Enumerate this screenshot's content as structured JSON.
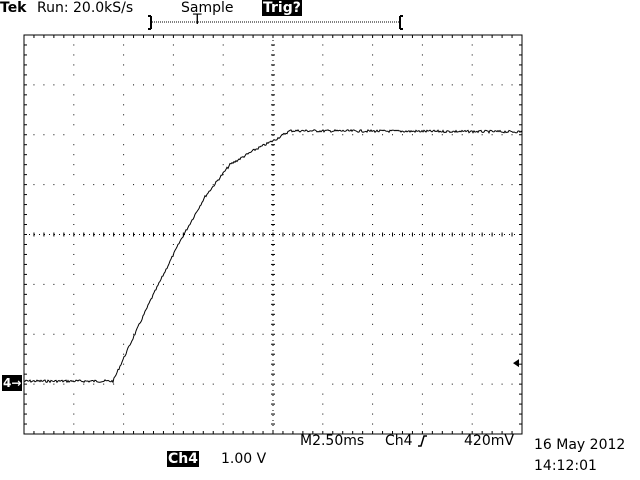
{
  "header": {
    "brand": "Tek",
    "run_status": "Run: 20.0kS/s",
    "acq_mode": "Sample",
    "trigger_status": "Trig?"
  },
  "record_bar": {
    "trigger_marker": "T"
  },
  "channel_marker": "4→",
  "footer": {
    "timebase": "M2.50ms",
    "trigger_source": "Ch4",
    "trigger_slope_icon": "rising-edge-icon",
    "trigger_level": "420mV",
    "channel_label": "Ch4",
    "channel_scale": "1.00 V",
    "date": "16 May 2012",
    "time": "14:12:01"
  },
  "chart_data": {
    "type": "line",
    "x_unit": "ms",
    "y_unit": "V",
    "xlim": [
      0,
      25
    ],
    "ylim": [
      -1,
      7
    ],
    "grid": true,
    "x_divisions": 10,
    "y_divisions": 8,
    "trigger_level_v": 0.42,
    "series": [
      {
        "x": [
          0,
          4.47,
          6.33,
          7.83,
          9.09,
          10.34,
          11.6,
          12.6,
          13.35,
          25
        ],
        "y": [
          0.06,
          0.06,
          1.66,
          2.86,
          3.76,
          4.4,
          4.7,
          4.9,
          5.08,
          5.06
        ]
      }
    ]
  }
}
